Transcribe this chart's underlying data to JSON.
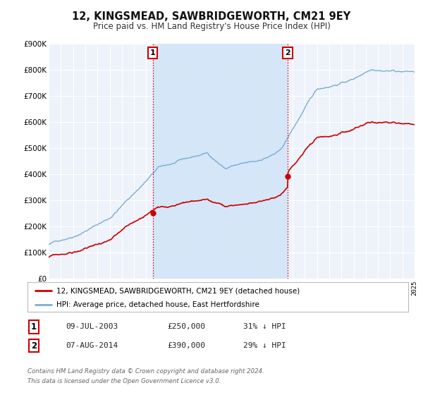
{
  "title": "12, KINGSMEAD, SAWBRIDGEWORTH, CM21 9EY",
  "subtitle": "Price paid vs. HM Land Registry's House Price Index (HPI)",
  "background_color": "#ffffff",
  "plot_bg_color": "#eef2fa",
  "grid_color": "#ffffff",
  "hpi_color": "#7aadd4",
  "price_color": "#cc0000",
  "shade_color": "#d0e4f7",
  "ylim": [
    0,
    900000
  ],
  "yticks": [
    0,
    100000,
    200000,
    300000,
    400000,
    500000,
    600000,
    700000,
    800000,
    900000
  ],
  "ytick_labels": [
    "£0",
    "£100K",
    "£200K",
    "£300K",
    "£400K",
    "£500K",
    "£600K",
    "£700K",
    "£800K",
    "£900K"
  ],
  "sale1_date": 2003.53,
  "sale1_price": 250000,
  "sale2_date": 2014.6,
  "sale2_price": 390000,
  "legend_line1": "12, KINGSMEAD, SAWBRIDGEWORTH, CM21 9EY (detached house)",
  "legend_line2": "HPI: Average price, detached house, East Hertfordshire",
  "table_row1": [
    "1",
    "09-JUL-2003",
    "£250,000",
    "31% ↓ HPI"
  ],
  "table_row2": [
    "2",
    "07-AUG-2014",
    "£390,000",
    "29% ↓ HPI"
  ],
  "footer1": "Contains HM Land Registry data © Crown copyright and database right 2024.",
  "footer2": "This data is licensed under the Open Government Licence v3.0.",
  "xmin": 1995,
  "xmax": 2025
}
